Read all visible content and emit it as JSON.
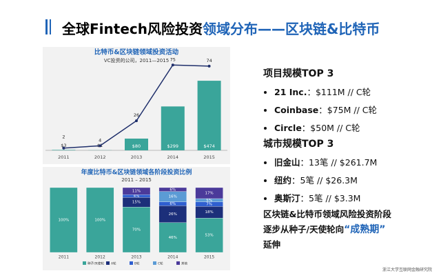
{
  "slide": {
    "title_black": "全球Fintech风险投资",
    "title_blue": "领域分布——区块链&比特币",
    "sections": [
      {
        "title": "项目规模TOP 3",
        "items": [
          [
            "21 Inc.",
            "：$111M // C轮"
          ],
          [
            "Coinbase",
            "：$75M // C轮"
          ],
          [
            "Circle",
            "：$50M // C轮"
          ]
        ]
      },
      {
        "title": "城市规模TOP 3",
        "items": [
          [
            "旧金山",
            "：13笔 // $261.7M"
          ],
          [
            "纽约",
            "：5笔 // $26.3M"
          ],
          [
            "奥斯汀",
            "：5笔 // $3.3M"
          ]
        ]
      }
    ],
    "conclusion": [
      "区块链&比特币领域风险投资阶段",
      "逐步从种子/天使轮向",
      "“成熟期”",
      "延伸"
    ],
    "logo": "浙江大学互联网金融研究院"
  },
  "chart_data": [
    {
      "type": "bar-line",
      "title": "比特币&区块链领域投资活动",
      "subtitle": "VC投资的公司，2011—2015",
      "categories": [
        "2011",
        "2012",
        "2013",
        "2014",
        "2015"
      ],
      "series": [
        {
          "type": "bar",
          "color": "#3aa59a",
          "values": [
            3,
            1,
            80,
            299,
            474
          ],
          "value_labels": [
            "$3",
            "$1",
            "$80",
            "$299",
            "$474"
          ]
        },
        {
          "type": "line",
          "axis": "y2",
          "color": "#1f2f6b",
          "values": [
            2,
            4,
            26,
            75,
            74
          ]
        }
      ],
      "ylim": [
        0,
        620
      ],
      "y2lim": [
        0,
        80
      ]
    },
    {
      "type": "stacked-bar",
      "title": "年度比特币&区块链领域各阶段投资比例",
      "subtitle": "2011 – 2015",
      "categories": [
        "2011",
        "2012",
        "2013",
        "2014",
        "2015"
      ],
      "series": [
        {
          "name": "种子/天使轮",
          "color": "#3aa59a",
          "values": [
            100,
            100,
            70,
            46,
            53
          ],
          "value_labels": [
            "100%",
            "100%",
            "70%",
            "46%",
            "53%"
          ]
        },
        {
          "name": "A轮",
          "color": "#1c2f7a",
          "values": [
            0,
            0,
            15,
            26,
            18
          ],
          "value_labels": [
            null,
            null,
            "15%",
            "26%",
            "18%"
          ]
        },
        {
          "name": "B轮",
          "color": "#2f5fd0",
          "values": [
            0,
            0,
            4,
            6,
            7
          ],
          "value_labels": [
            null,
            null,
            "4%",
            "6%",
            "7%"
          ]
        },
        {
          "name": "C轮",
          "color": "#5b9bd5",
          "values": [
            0,
            0,
            0,
            16,
            5
          ],
          "value_labels": [
            null,
            null,
            null,
            "16%",
            "5%"
          ]
        },
        {
          "name": "其他",
          "color": "#4b3a9a",
          "values": [
            0,
            0,
            11,
            6,
            17
          ],
          "value_labels": [
            null,
            null,
            "11%",
            "6%",
            "17%"
          ]
        }
      ],
      "ylim": [
        0,
        100
      ]
    }
  ]
}
